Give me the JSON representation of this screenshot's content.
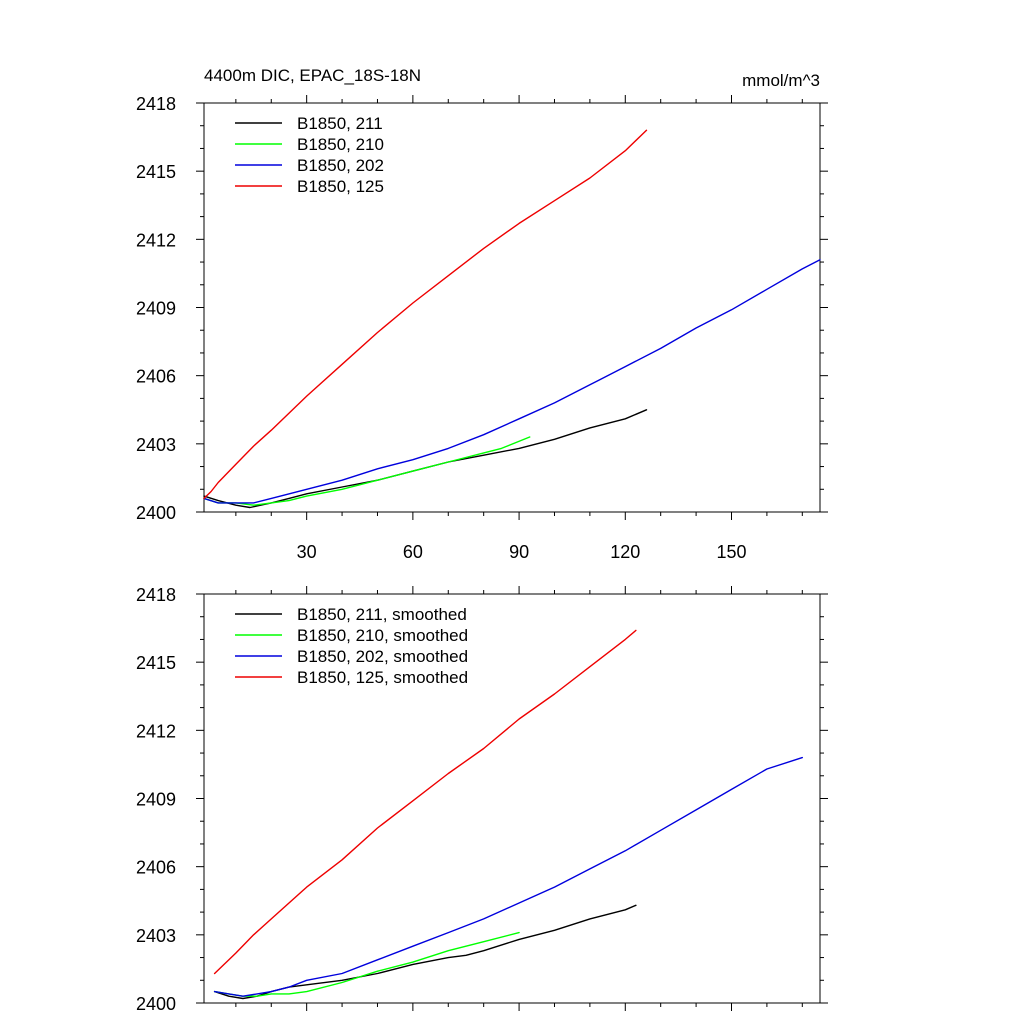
{
  "chart_data": [
    {
      "type": "line",
      "title": "4400m DIC, EPAC_18S-18N",
      "units": "mmol/m^3",
      "xlim": [
        1,
        175
      ],
      "ylim": [
        2400,
        2418
      ],
      "xticks": [
        30,
        60,
        90,
        120,
        150
      ],
      "xtick_labels": [
        "30",
        "60",
        "90",
        "120",
        "150"
      ],
      "yticks": [
        2400,
        2403,
        2406,
        2409,
        2412,
        2415,
        2418
      ],
      "ytick_labels": [
        "2400",
        "2403",
        "2406",
        "2409",
        "2412",
        "2415",
        "2418"
      ],
      "grid": false,
      "legend_position": "top-left",
      "series": [
        {
          "name": "B1850, 211",
          "color": "#000000",
          "x": [
            1,
            5,
            10,
            14,
            17,
            20,
            25,
            30,
            40,
            50,
            60,
            70,
            80,
            90,
            100,
            110,
            120,
            126
          ],
          "y": [
            2400.7,
            2400.5,
            2400.3,
            2400.2,
            2400.3,
            2400.4,
            2400.6,
            2400.8,
            2401.1,
            2401.4,
            2401.8,
            2402.2,
            2402.5,
            2402.8,
            2403.2,
            2403.7,
            2404.1,
            2404.5
          ]
        },
        {
          "name": "B1850, 210",
          "color": "#00ff00",
          "x": [
            1,
            5,
            10,
            15,
            20,
            25,
            30,
            40,
            50,
            60,
            70,
            80,
            85,
            93
          ],
          "y": [
            2400.6,
            2400.4,
            2400.4,
            2400.3,
            2400.4,
            2400.5,
            2400.7,
            2401.0,
            2401.4,
            2401.8,
            2402.2,
            2402.6,
            2402.8,
            2403.3
          ]
        },
        {
          "name": "B1850, 202",
          "color": "#0000dd",
          "x": [
            1,
            5,
            10,
            15,
            20,
            30,
            40,
            50,
            60,
            70,
            80,
            90,
            100,
            110,
            120,
            130,
            140,
            150,
            160,
            170,
            175
          ],
          "y": [
            2400.6,
            2400.4,
            2400.4,
            2400.4,
            2400.6,
            2401.0,
            2401.4,
            2401.9,
            2402.3,
            2402.8,
            2403.4,
            2404.1,
            2404.8,
            2405.6,
            2406.4,
            2407.2,
            2408.1,
            2408.9,
            2409.8,
            2410.7,
            2411.1
          ]
        },
        {
          "name": "B1850, 125",
          "color": "#ee0000",
          "x": [
            1,
            3,
            5,
            10,
            15,
            20,
            30,
            40,
            50,
            60,
            70,
            80,
            90,
            100,
            110,
            120,
            126
          ],
          "y": [
            2400.6,
            2400.9,
            2401.3,
            2402.1,
            2402.9,
            2403.6,
            2405.1,
            2406.5,
            2407.9,
            2409.2,
            2410.4,
            2411.6,
            2412.7,
            2413.7,
            2414.7,
            2415.9,
            2416.8
          ]
        }
      ]
    },
    {
      "type": "line",
      "xlim": [
        1,
        175
      ],
      "ylim": [
        2400,
        2418
      ],
      "xticks": [
        30,
        60,
        90,
        120,
        150
      ],
      "yticks": [
        2400,
        2403,
        2406,
        2409,
        2412,
        2415,
        2418
      ],
      "ytick_labels": [
        "2400",
        "2403",
        "2406",
        "2409",
        "2412",
        "2415",
        "2418"
      ],
      "grid": false,
      "legend_position": "top-left",
      "series": [
        {
          "name": "B1850, 211, smoothed",
          "color": "#000000",
          "x": [
            4,
            8,
            12,
            16,
            20,
            25,
            30,
            40,
            50,
            60,
            70,
            75,
            80,
            90,
            100,
            110,
            120,
            123
          ],
          "y": [
            2400.5,
            2400.3,
            2400.2,
            2400.3,
            2400.5,
            2400.7,
            2400.8,
            2401.0,
            2401.3,
            2401.7,
            2402.0,
            2402.1,
            2402.3,
            2402.8,
            2403.2,
            2403.7,
            2404.1,
            2404.3
          ]
        },
        {
          "name": "B1850, 210, smoothed",
          "color": "#00ff00",
          "x": [
            4,
            8,
            12,
            16,
            20,
            25,
            30,
            40,
            50,
            60,
            70,
            80,
            90
          ],
          "y": [
            2400.5,
            2400.4,
            2400.3,
            2400.3,
            2400.4,
            2400.4,
            2400.5,
            2400.9,
            2401.4,
            2401.8,
            2402.3,
            2402.7,
            2403.1
          ]
        },
        {
          "name": "B1850, 202, smoothed",
          "color": "#0000dd",
          "x": [
            4,
            8,
            12,
            16,
            20,
            25,
            30,
            40,
            50,
            60,
            70,
            80,
            90,
            100,
            110,
            120,
            130,
            140,
            150,
            160,
            170
          ],
          "y": [
            2400.5,
            2400.4,
            2400.3,
            2400.4,
            2400.5,
            2400.7,
            2401.0,
            2401.3,
            2401.9,
            2402.5,
            2403.1,
            2403.7,
            2404.4,
            2405.1,
            2405.9,
            2406.7,
            2407.6,
            2408.5,
            2409.4,
            2410.3,
            2410.8
          ]
        },
        {
          "name": "B1850, 125, smoothed",
          "color": "#ee0000",
          "x": [
            4,
            10,
            15,
            20,
            30,
            40,
            50,
            60,
            70,
            80,
            90,
            100,
            110,
            120,
            123
          ],
          "y": [
            2401.3,
            2402.2,
            2403.0,
            2403.7,
            2405.1,
            2406.3,
            2407.7,
            2408.9,
            2410.1,
            2411.2,
            2412.5,
            2413.6,
            2414.8,
            2416.0,
            2416.4
          ]
        }
      ]
    }
  ]
}
